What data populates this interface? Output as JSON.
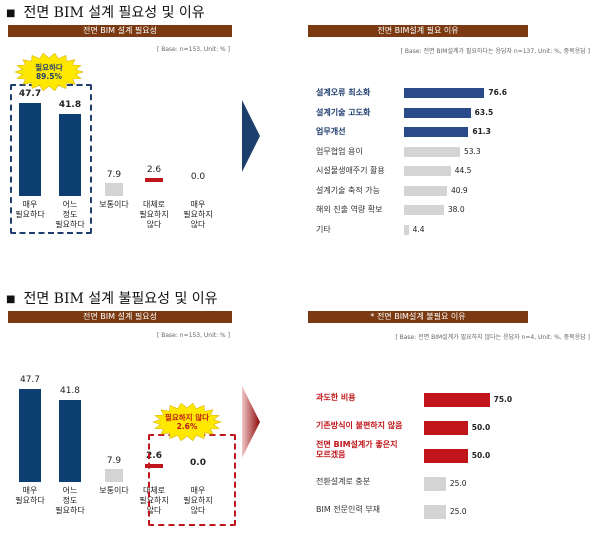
{
  "sections": [
    {
      "title": "전면 BIM 설계 필요성 및 이유",
      "left_banner": "전면 BIM 설계 필요성",
      "left_base": "[ Base:  n=153,  Unit:  % ]",
      "right_banner": "전면 BIM설계 필요 이유",
      "right_base": "[ Base:   전면 BIM설계가 필요하다는 응답자 n=137,  Unit: %, 중복응답 ]",
      "callout": "필요하다\n89.5%",
      "highlight_color": "#1f3e6e"
    },
    {
      "title": "전면 BIM 설계 불필요성 및 이유",
      "left_banner": "전면 BIM 설계 필요성",
      "left_base": "[ Base:  n=153,  Unit:  % ]",
      "right_banner": "* 전면 BIM설계 불필요 이유",
      "right_base": "[ Base:  전면 BIM설계가 필요하지 않다는 응답자 n=4,  Unit: %, 중복응답 ]",
      "callout": "필요하지 않다\n2.6%",
      "highlight_color": "#c0161b"
    }
  ],
  "chart_data": [
    {
      "type": "bar",
      "categories": [
        "매우\n필요하다",
        "어느\n정도\n필요하다",
        "보통이다",
        "대체로\n필요하지\n않다",
        "매우\n필요하지\n않다"
      ],
      "values": [
        47.7,
        41.8,
        7.9,
        2.6,
        0.0
      ],
      "value_labels": [
        "47.7",
        "41.8",
        "7.9",
        "2.6",
        "0.0"
      ],
      "colors": [
        "#0e3f73",
        "#0e3f73",
        "#d4d4d4",
        "#c0161b",
        "#d4d4d4"
      ],
      "ylim": [
        0,
        50
      ]
    },
    {
      "type": "bar",
      "orientation": "horizontal",
      "categories": [
        "설계오류 최소화",
        "설계기술 고도화",
        "업무개선",
        "업무협업 용이",
        "시설물생애주기 활용",
        "설계기술 축적 가능",
        "해외 진출 역량 확보",
        "기타"
      ],
      "values": [
        76.6,
        63.5,
        61.3,
        53.3,
        44.5,
        40.9,
        38.0,
        4.4
      ],
      "value_labels": [
        "76.6",
        "63.5",
        "61.3",
        "53.3",
        "44.5",
        "40.9",
        "38.0",
        "4.4"
      ],
      "highlight_count": 3,
      "xlim": [
        0,
        80
      ]
    },
    {
      "type": "bar",
      "categories": [
        "매우\n필요하다",
        "어느\n정도\n필요하다",
        "보통이다",
        "대체로\n필요하지\n않다",
        "매우\n필요하지\n않다"
      ],
      "values": [
        47.7,
        41.8,
        7.9,
        2.6,
        0.0
      ],
      "value_labels": [
        "47.7",
        "41.8",
        "7.9",
        "2.6",
        "0.0"
      ],
      "colors": [
        "#0e3f73",
        "#0e3f73",
        "#d4d4d4",
        "#c0161b",
        "#d4d4d4"
      ],
      "ylim": [
        0,
        50
      ]
    },
    {
      "type": "bar",
      "orientation": "horizontal",
      "categories": [
        "과도한 비용",
        "기존방식이 불편하지 않음",
        "전면 BIM설계가 좋은지\n모르겠음",
        "전환설계로 충분",
        "BIM 전문인력 부재"
      ],
      "values": [
        75.0,
        50.0,
        50.0,
        25.0,
        25.0
      ],
      "value_labels": [
        "75.0",
        "50.0",
        "50.0",
        "25.0",
        "25.0"
      ],
      "highlight_count": 3,
      "xlim": [
        0,
        80
      ]
    }
  ]
}
